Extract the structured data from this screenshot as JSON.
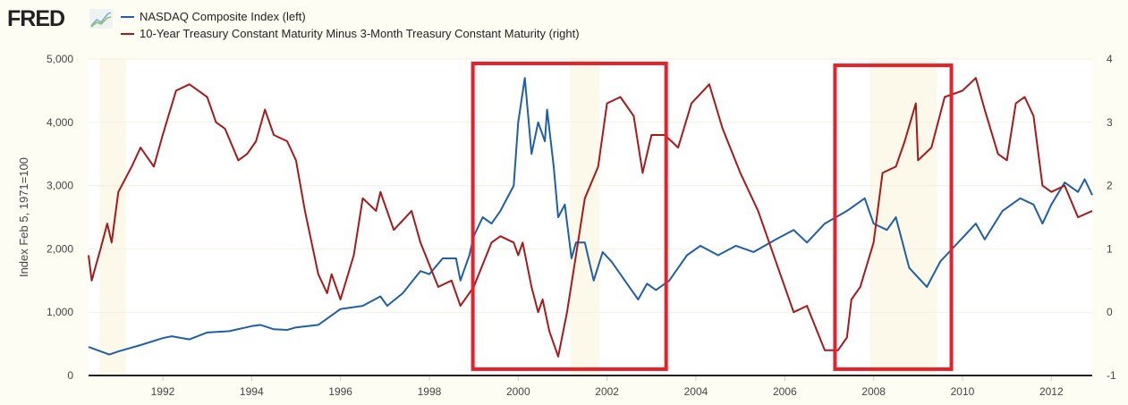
{
  "logo": "FRED",
  "chart_data": {
    "type": "line",
    "title": "",
    "ylabel": "Index Feb 5, 1971=100",
    "xlim": [
      1990.33,
      2012.92
    ],
    "ylim_left": [
      0,
      5000
    ],
    "ylim_right": [
      -1,
      4
    ],
    "x_ticks": [
      "1992",
      "1994",
      "1996",
      "1998",
      "2000",
      "2002",
      "2004",
      "2006",
      "2008",
      "2010",
      "2012"
    ],
    "y_ticks_left": [
      "0",
      "1,000",
      "2,000",
      "3,000",
      "4,000",
      "5,000"
    ],
    "y_ticks_right": [
      "-1",
      "0",
      "1",
      "2",
      "3",
      "4"
    ],
    "legend_placement": "top-left",
    "recessions": [
      [
        1990.58,
        1991.17
      ],
      [
        2001.17,
        2001.83
      ],
      [
        2007.92,
        2009.42
      ]
    ],
    "highlight_boxes": [
      {
        "x": [
          1998.98,
          2003.33
        ],
        "y_left": [
          100,
          4930
        ],
        "color": "#e8202a"
      },
      {
        "x": [
          2007.13,
          2009.75
        ],
        "y_left": [
          100,
          4900
        ],
        "color": "#e8202a"
      }
    ],
    "series": [
      {
        "name": "NASDAQ Composite Index (left)",
        "axis": "left",
        "color": "#1f5fa8",
        "points": [
          [
            1990.33,
            450
          ],
          [
            1990.8,
            330
          ],
          [
            1991.0,
            380
          ],
          [
            1991.5,
            480
          ],
          [
            1992,
            590
          ],
          [
            1992.2,
            620
          ],
          [
            1992.6,
            570
          ],
          [
            1993,
            680
          ],
          [
            1993.5,
            700
          ],
          [
            1994,
            780
          ],
          [
            1994.2,
            800
          ],
          [
            1994.5,
            730
          ],
          [
            1994.8,
            720
          ],
          [
            1995,
            760
          ],
          [
            1995.5,
            800
          ],
          [
            1996,
            1050
          ],
          [
            1996.5,
            1100
          ],
          [
            1996.9,
            1250
          ],
          [
            1997.05,
            1100
          ],
          [
            1997.4,
            1300
          ],
          [
            1997.8,
            1650
          ],
          [
            1998.0,
            1600
          ],
          [
            1998.3,
            1850
          ],
          [
            1998.6,
            1850
          ],
          [
            1998.7,
            1500
          ],
          [
            1998.9,
            1900
          ],
          [
            1999,
            2200
          ],
          [
            1999.2,
            2500
          ],
          [
            1999.4,
            2400
          ],
          [
            1999.6,
            2600
          ],
          [
            1999.9,
            3000
          ],
          [
            2000.0,
            4000
          ],
          [
            2000.15,
            4700
          ],
          [
            2000.3,
            3500
          ],
          [
            2000.45,
            4000
          ],
          [
            2000.6,
            3700
          ],
          [
            2000.65,
            4200
          ],
          [
            2000.8,
            3300
          ],
          [
            2000.9,
            2500
          ],
          [
            2001.05,
            2700
          ],
          [
            2001.2,
            1850
          ],
          [
            2001.3,
            2100
          ],
          [
            2001.5,
            2100
          ],
          [
            2001.7,
            1500
          ],
          [
            2001.9,
            1950
          ],
          [
            2002.1,
            1800
          ],
          [
            2002.5,
            1400
          ],
          [
            2002.7,
            1200
          ],
          [
            2002.9,
            1450
          ],
          [
            2003.1,
            1350
          ],
          [
            2003.4,
            1500
          ],
          [
            2003.8,
            1900
          ],
          [
            2004.1,
            2050
          ],
          [
            2004.5,
            1900
          ],
          [
            2004.9,
            2050
          ],
          [
            2005.3,
            1950
          ],
          [
            2005.8,
            2150
          ],
          [
            2006.2,
            2300
          ],
          [
            2006.5,
            2100
          ],
          [
            2006.9,
            2400
          ],
          [
            2007.4,
            2600
          ],
          [
            2007.8,
            2800
          ],
          [
            2008.0,
            2400
          ],
          [
            2008.3,
            2300
          ],
          [
            2008.5,
            2500
          ],
          [
            2008.8,
            1700
          ],
          [
            2009.0,
            1550
          ],
          [
            2009.2,
            1400
          ],
          [
            2009.5,
            1800
          ],
          [
            2009.9,
            2100
          ],
          [
            2010.3,
            2400
          ],
          [
            2010.5,
            2150
          ],
          [
            2010.9,
            2600
          ],
          [
            2011.3,
            2800
          ],
          [
            2011.6,
            2700
          ],
          [
            2011.8,
            2400
          ],
          [
            2012.0,
            2700
          ],
          [
            2012.3,
            3050
          ],
          [
            2012.6,
            2900
          ],
          [
            2012.75,
            3100
          ],
          [
            2012.92,
            2850
          ]
        ]
      },
      {
        "name": "10-Year Treasury Constant Maturity Minus 3-Month Treasury Constant Maturity (right)",
        "axis": "right",
        "color": "#a8191c",
        "points": [
          [
            1990.33,
            0.9
          ],
          [
            1990.4,
            0.5
          ],
          [
            1990.6,
            1.0
          ],
          [
            1990.75,
            1.4
          ],
          [
            1990.85,
            1.1
          ],
          [
            1991.0,
            1.9
          ],
          [
            1991.3,
            2.3
          ],
          [
            1991.5,
            2.6
          ],
          [
            1991.8,
            2.3
          ],
          [
            1992.0,
            2.8
          ],
          [
            1992.3,
            3.5
          ],
          [
            1992.6,
            3.6
          ],
          [
            1992.8,
            3.5
          ],
          [
            1993.0,
            3.4
          ],
          [
            1993.2,
            3.0
          ],
          [
            1993.4,
            2.9
          ],
          [
            1993.7,
            2.4
          ],
          [
            1993.9,
            2.5
          ],
          [
            1994.1,
            2.7
          ],
          [
            1994.3,
            3.2
          ],
          [
            1994.5,
            2.8
          ],
          [
            1994.8,
            2.7
          ],
          [
            1995.0,
            2.4
          ],
          [
            1995.2,
            1.6
          ],
          [
            1995.5,
            0.6
          ],
          [
            1995.7,
            0.3
          ],
          [
            1995.8,
            0.6
          ],
          [
            1996.0,
            0.2
          ],
          [
            1996.3,
            0.9
          ],
          [
            1996.5,
            1.8
          ],
          [
            1996.8,
            1.6
          ],
          [
            1996.9,
            1.9
          ],
          [
            1997.2,
            1.3
          ],
          [
            1997.6,
            1.6
          ],
          [
            1997.8,
            1.1
          ],
          [
            1998.2,
            0.4
          ],
          [
            1998.5,
            0.5
          ],
          [
            1998.7,
            0.1
          ],
          [
            1999.0,
            0.4
          ],
          [
            1999.4,
            1.1
          ],
          [
            1999.6,
            1.2
          ],
          [
            1999.9,
            1.1
          ],
          [
            2000.0,
            0.9
          ],
          [
            2000.1,
            1.1
          ],
          [
            2000.3,
            0.4
          ],
          [
            2000.45,
            0.0
          ],
          [
            2000.55,
            0.2
          ],
          [
            2000.7,
            -0.3
          ],
          [
            2000.9,
            -0.7
          ],
          [
            2001.1,
            0.0
          ],
          [
            2001.3,
            0.9
          ],
          [
            2001.5,
            1.8
          ],
          [
            2001.8,
            2.3
          ],
          [
            2002.0,
            3.3
          ],
          [
            2002.3,
            3.4
          ],
          [
            2002.6,
            3.1
          ],
          [
            2002.8,
            2.2
          ],
          [
            2003.0,
            2.8
          ],
          [
            2003.3,
            2.8
          ],
          [
            2003.6,
            2.6
          ],
          [
            2003.9,
            3.3
          ],
          [
            2004.3,
            3.6
          ],
          [
            2004.6,
            2.9
          ],
          [
            2005.0,
            2.2
          ],
          [
            2005.4,
            1.6
          ],
          [
            2005.7,
            1.0
          ],
          [
            2005.9,
            0.6
          ],
          [
            2006.2,
            0.0
          ],
          [
            2006.5,
            0.1
          ],
          [
            2006.9,
            -0.6
          ],
          [
            2007.2,
            -0.6
          ],
          [
            2007.4,
            -0.4
          ],
          [
            2007.5,
            0.2
          ],
          [
            2007.7,
            0.4
          ],
          [
            2008.0,
            1.1
          ],
          [
            2008.2,
            2.2
          ],
          [
            2008.5,
            2.3
          ],
          [
            2008.7,
            2.7
          ],
          [
            2008.95,
            3.3
          ],
          [
            2009.0,
            2.4
          ],
          [
            2009.3,
            2.6
          ],
          [
            2009.6,
            3.4
          ],
          [
            2010.0,
            3.5
          ],
          [
            2010.3,
            3.7
          ],
          [
            2010.5,
            3.2
          ],
          [
            2010.8,
            2.5
          ],
          [
            2011.0,
            2.4
          ],
          [
            2011.2,
            3.3
          ],
          [
            2011.4,
            3.4
          ],
          [
            2011.6,
            3.1
          ],
          [
            2011.8,
            2.0
          ],
          [
            2012.0,
            1.9
          ],
          [
            2012.3,
            2.0
          ],
          [
            2012.6,
            1.5
          ],
          [
            2012.92,
            1.6
          ]
        ]
      }
    ]
  }
}
